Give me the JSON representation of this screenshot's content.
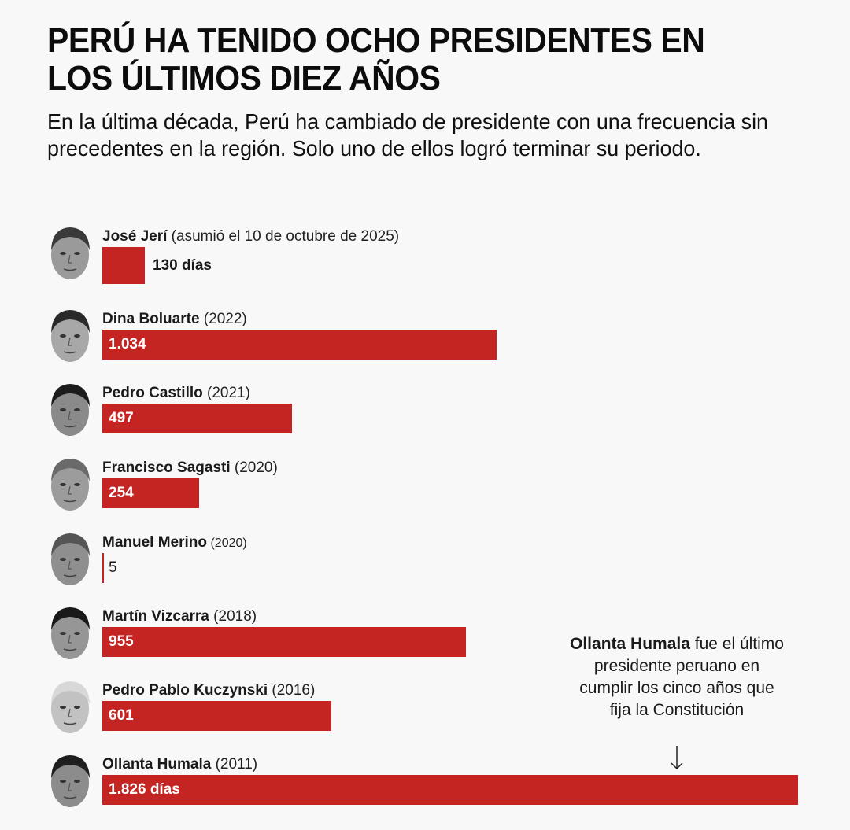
{
  "title": "PERÚ HA TENIDO OCHO PRESIDENTES EN LOS ÚLTIMOS DIEZ AÑOS",
  "subtitle": "En la última década, Perú ha cambiado de presidente con una frecuencia sin precedentes en la región. Solo uno de ellos logró terminar su periodo.",
  "colors": {
    "bar": "#c42422",
    "background": "#f8f8f8",
    "text": "#111111"
  },
  "annotation": {
    "bold": "Ollanta Humala",
    "text": " fue el último presidente peruano en cumplir los cinco años que fija la Constitución",
    "icon": "arrow-down-icon"
  },
  "chart_data": {
    "type": "bar",
    "orientation": "horizontal",
    "title": "PERÚ HA TENIDO OCHO PRESIDENTES EN LOS ÚLTIMOS DIEZ AÑOS",
    "xlabel": "días",
    "ylabel": "",
    "xlim": [
      0,
      1826
    ],
    "grid": false,
    "categories": [
      "José Jerí",
      "Dina Boluarte",
      "Pedro Castillo",
      "Francisco Sagasti",
      "Manuel Merino",
      "Martín Vizcarra",
      "Pedro Pablo Kuczynski",
      "Ollanta Humala"
    ],
    "values": [
      130,
      1034,
      497,
      254,
      5,
      955,
      601,
      1826
    ],
    "rows": [
      {
        "name": "José Jerí",
        "detail": "(asumió el 10 de octubre de 2025)",
        "value": 130,
        "label": "130 días",
        "label_position": "outside",
        "icon": "face-jose-jeri-icon"
      },
      {
        "name": "Dina Boluarte",
        "detail": "(2022)",
        "value": 1034,
        "label": "1.034",
        "label_position": "inside",
        "icon": "face-dina-boluarte-icon"
      },
      {
        "name": "Pedro Castillo",
        "detail": "(2021)",
        "value": 497,
        "label": "497",
        "label_position": "inside",
        "icon": "face-pedro-castillo-icon"
      },
      {
        "name": "Francisco Sagasti",
        "detail": "(2020)",
        "value": 254,
        "label": "254",
        "label_position": "inside",
        "icon": "face-francisco-sagasti-icon"
      },
      {
        "name": "Manuel Merino",
        "detail": "(2020)",
        "value": 5,
        "label": "5",
        "label_position": "outside",
        "icon": "face-manuel-merino-icon"
      },
      {
        "name": "Martín Vizcarra",
        "detail": "(2018)",
        "value": 955,
        "label": "955",
        "label_position": "inside",
        "icon": "face-martin-vizcarra-icon"
      },
      {
        "name": "Pedro Pablo Kuczynski",
        "detail": "(2016)",
        "value": 601,
        "label": "601",
        "label_position": "inside",
        "icon": "face-pedro-pablo-kuczynski-icon"
      },
      {
        "name": "Ollanta Humala",
        "detail": "(2011)",
        "value": 1826,
        "label": "1.826 días",
        "label_position": "inside",
        "icon": "face-ollanta-humala-icon"
      }
    ]
  }
}
